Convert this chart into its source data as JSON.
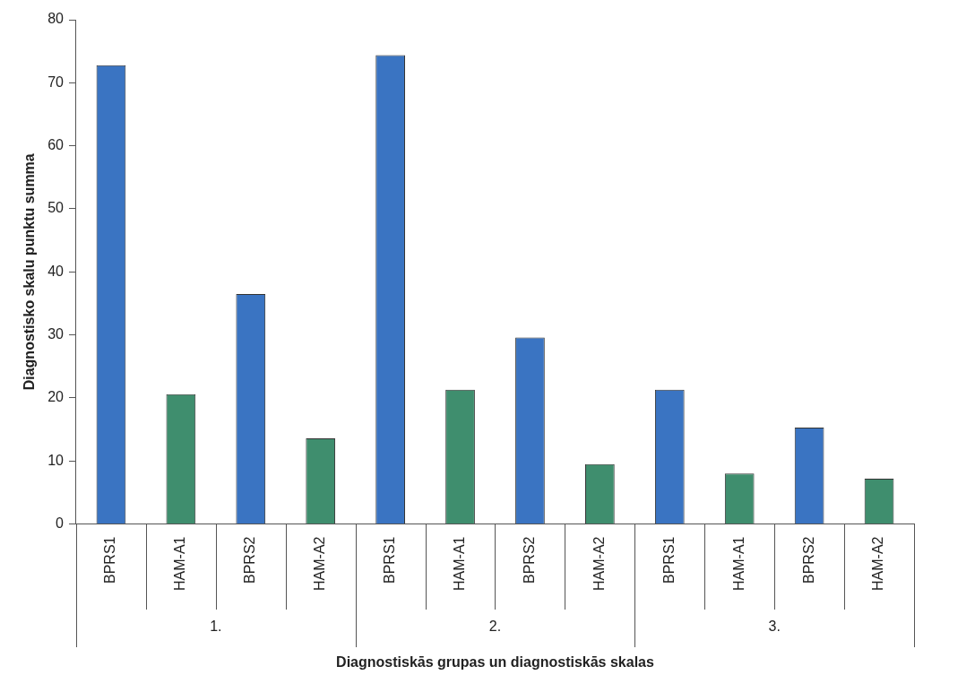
{
  "chart_data": {
    "type": "bar",
    "xlabel": "Diagnostiskās grupas un diagnostiskās skalas",
    "ylabel": "Diagnostisko skalu punktu summa",
    "categories": [
      "BPRS1",
      "HAM-A1",
      "BPRS2",
      "HAM-A2",
      "BPRS1",
      "HAM-A1",
      "BPRS2",
      "HAM-A2",
      "BPRS1",
      "HAM-A1",
      "BPRS2",
      "HAM-A2"
    ],
    "values": [
      72.8,
      20.6,
      36.5,
      13.6,
      74.4,
      21.3,
      29.6,
      9.5,
      21.3,
      8.0,
      15.3,
      7.2
    ],
    "colors": [
      "#3a74c2",
      "#3f8e6e",
      "#3a74c2",
      "#3f8e6e",
      "#3a74c2",
      "#3f8e6e",
      "#3a74c2",
      "#3f8e6e",
      "#3a74c2",
      "#3f8e6e",
      "#3a74c2",
      "#3f8e6e"
    ],
    "annotations": [
      "1.",
      "2.",
      "3."
    ],
    "ylim": [
      0,
      80
    ],
    "yticks": [
      0,
      10,
      20,
      30,
      40,
      50,
      60,
      70,
      80
    ],
    "grid": false,
    "legend": false
  }
}
